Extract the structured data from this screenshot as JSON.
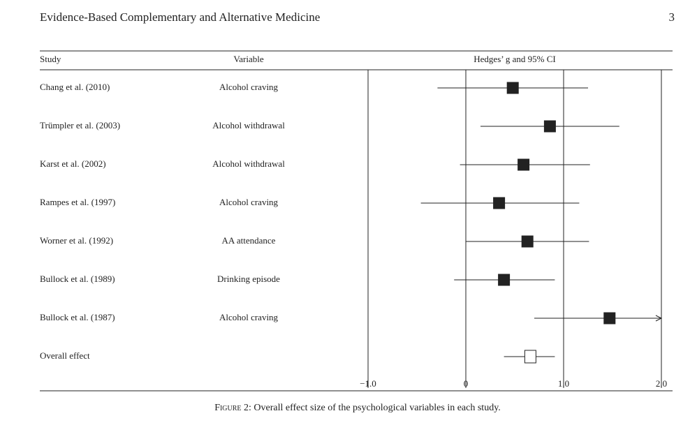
{
  "header": {
    "journal": "Evidence-Based Complementary and Alternative Medicine",
    "page": "3"
  },
  "chart_data": {
    "type": "forest",
    "column_headers": {
      "study": "Study",
      "variable": "Variable",
      "effect": "Hedges’ g and 95% CI"
    },
    "categories": [
      "Chang et al. (2010)",
      "Trümpler et al. (2003)",
      "Karst et al. (2002)",
      "Rampes et al. (1997)",
      "Worner et al. (1992)",
      "Bullock et al. (1989)",
      "Bullock et al. (1987)",
      "Overall effect"
    ],
    "variables": [
      "Alcohol craving",
      "Alcohol withdrawal",
      "Alcohol withdrawal",
      "Alcohol craving",
      "AA attendance",
      "Drinking episode",
      "Alcohol craving",
      null
    ],
    "values": [
      0.48,
      0.86,
      0.59,
      0.34,
      0.63,
      0.39,
      1.47,
      0.66
    ],
    "ci_lower": [
      -0.29,
      0.15,
      -0.06,
      -0.46,
      0.0,
      -0.12,
      0.7,
      0.39
    ],
    "ci_upper": [
      1.25,
      1.57,
      1.27,
      1.16,
      1.26,
      0.91,
      null,
      0.91
    ],
    "xlim": [
      -1,
      2
    ],
    "xticks": [
      {
        "value": -1,
        "label": "−1.0"
      },
      0,
      {
        "value": 1,
        "label": "1.0"
      },
      {
        "value": 2,
        "label": "2.0"
      }
    ],
    "grid": true,
    "color": "#222222"
  },
  "caption": {
    "label": "Figure 2:",
    "text": "Overall effect size of the psychological variables in each study."
  }
}
